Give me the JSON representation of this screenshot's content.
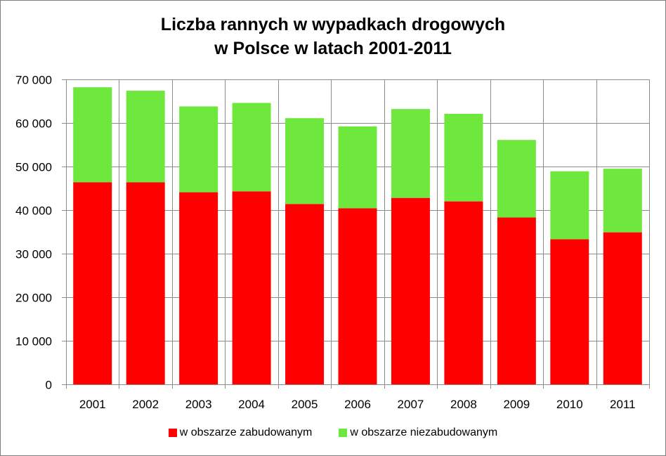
{
  "chart_data": {
    "type": "bar",
    "stacked": true,
    "title_lines": [
      "Liczba rannych w wypadkach drogowych",
      "w Polsce w latach 2001-2011"
    ],
    "categories": [
      "2001",
      "2002",
      "2003",
      "2004",
      "2005",
      "2006",
      "2007",
      "2008",
      "2009",
      "2010",
      "2011"
    ],
    "series": [
      {
        "name": "w obszarze zabudowanym",
        "color": "#ff0000",
        "values": [
          46400,
          46400,
          44100,
          44300,
          41400,
          40400,
          42800,
          42000,
          38300,
          33300,
          34900
        ]
      },
      {
        "name": "w obszarze niezabudowanym",
        "color": "#6ee83c",
        "values": [
          21800,
          21000,
          19700,
          20300,
          19700,
          18800,
          20400,
          20100,
          17800,
          15600,
          14600
        ]
      }
    ],
    "yticks": [
      "0",
      "10 000",
      "20 000",
      "30 000",
      "40 000",
      "50 000",
      "60 000",
      "70 000"
    ],
    "ylim": [
      0,
      70000
    ],
    "grid": true,
    "legend_position": "bottom"
  }
}
